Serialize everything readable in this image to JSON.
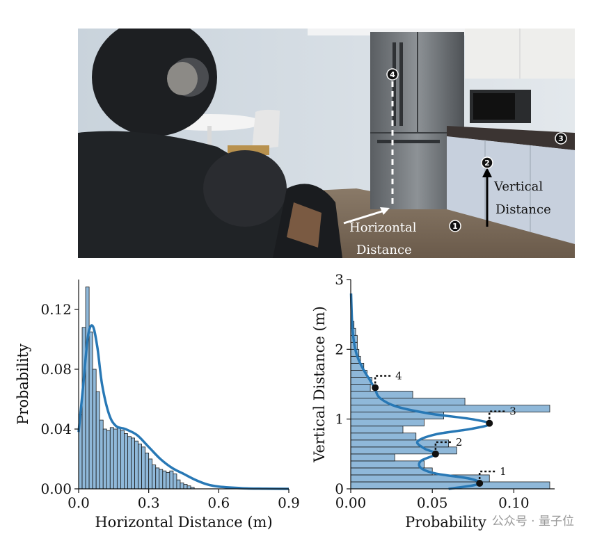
{
  "photo": {
    "horizontal_label_line1": "Horizontal",
    "horizontal_label_line2": "Distance",
    "vertical_label_line1": "Vertical",
    "vertical_label_line2": "Distance",
    "markers": [
      "1",
      "2",
      "3",
      "4"
    ]
  },
  "chart_data": [
    {
      "type": "histogram",
      "xlabel": "Horizontal Distance (m)",
      "ylabel": "Probability",
      "xlim": [
        0,
        0.9
      ],
      "ylim": [
        0,
        0.14
      ],
      "xticks": [
        "0.0",
        "0.3",
        "0.6",
        "0.9"
      ],
      "yticks": [
        "0.00",
        "0.04",
        "0.08",
        "0.12"
      ],
      "bin_width": 0.015,
      "bin_start": 0.0,
      "values": [
        0.05,
        0.108,
        0.135,
        0.105,
        0.08,
        0.065,
        0.046,
        0.04,
        0.039,
        0.041,
        0.04,
        0.041,
        0.039,
        0.037,
        0.035,
        0.034,
        0.032,
        0.03,
        0.028,
        0.024,
        0.02,
        0.016,
        0.014,
        0.013,
        0.012,
        0.011,
        0.012,
        0.01,
        0.006,
        0.004,
        0.003,
        0.002,
        0.001
      ],
      "kde": [
        [
          0.0,
          0.038
        ],
        [
          0.02,
          0.07
        ],
        [
          0.04,
          0.102
        ],
        [
          0.06,
          0.109
        ],
        [
          0.08,
          0.095
        ],
        [
          0.1,
          0.07
        ],
        [
          0.13,
          0.05
        ],
        [
          0.16,
          0.042
        ],
        [
          0.2,
          0.04
        ],
        [
          0.25,
          0.036
        ],
        [
          0.3,
          0.028
        ],
        [
          0.35,
          0.02
        ],
        [
          0.4,
          0.014
        ],
        [
          0.45,
          0.01
        ],
        [
          0.5,
          0.006
        ],
        [
          0.55,
          0.003
        ],
        [
          0.6,
          0.0015
        ],
        [
          0.7,
          0.0004
        ],
        [
          0.8,
          0.0001
        ],
        [
          0.9,
          0.0
        ]
      ]
    },
    {
      "type": "histogram",
      "orientation": "horizontal",
      "xlabel": "Probability",
      "ylabel": "Vertical Distance (m)",
      "xlim": [
        0,
        0.125
      ],
      "ylim": [
        0,
        3
      ],
      "xticks": [
        "0.00",
        "0.05",
        "0.10"
      ],
      "yticks": [
        "0",
        "1",
        "2",
        "3"
      ],
      "bin_height": 0.1,
      "bin_start": 0.0,
      "values": [
        0.122,
        0.085,
        0.05,
        0.045,
        0.027,
        0.065,
        0.06,
        0.04,
        0.032,
        0.045,
        0.057,
        0.122,
        0.07,
        0.038,
        0.012,
        0.013,
        0.01,
        0.008,
        0.006,
        0.005,
        0.004,
        0.004,
        0.003,
        0.002,
        0.001
      ],
      "kde": [
        [
          0.0,
          0.06
        ],
        [
          0.05,
          0.075
        ],
        [
          0.09,
          0.079
        ],
        [
          0.15,
          0.072
        ],
        [
          0.22,
          0.052
        ],
        [
          0.3,
          0.043
        ],
        [
          0.4,
          0.043
        ],
        [
          0.5,
          0.052
        ],
        [
          0.58,
          0.045
        ],
        [
          0.68,
          0.041
        ],
        [
          0.78,
          0.052
        ],
        [
          0.86,
          0.074
        ],
        [
          0.93,
          0.085
        ],
        [
          1.0,
          0.074
        ],
        [
          1.08,
          0.048
        ],
        [
          1.18,
          0.028
        ],
        [
          1.3,
          0.018
        ],
        [
          1.42,
          0.015
        ],
        [
          1.55,
          0.012
        ],
        [
          1.7,
          0.008
        ],
        [
          1.9,
          0.004
        ],
        [
          2.1,
          0.002
        ],
        [
          2.4,
          0.0008
        ],
        [
          2.8,
          0.0002
        ]
      ],
      "annotations": [
        {
          "label": "1",
          "x": 0.079,
          "y": 0.08
        },
        {
          "label": "2",
          "x": 0.052,
          "y": 0.5
        },
        {
          "label": "3",
          "x": 0.085,
          "y": 0.94
        },
        {
          "label": "4",
          "x": 0.015,
          "y": 1.45
        }
      ]
    }
  ],
  "watermark": "公众号 · 量子位"
}
